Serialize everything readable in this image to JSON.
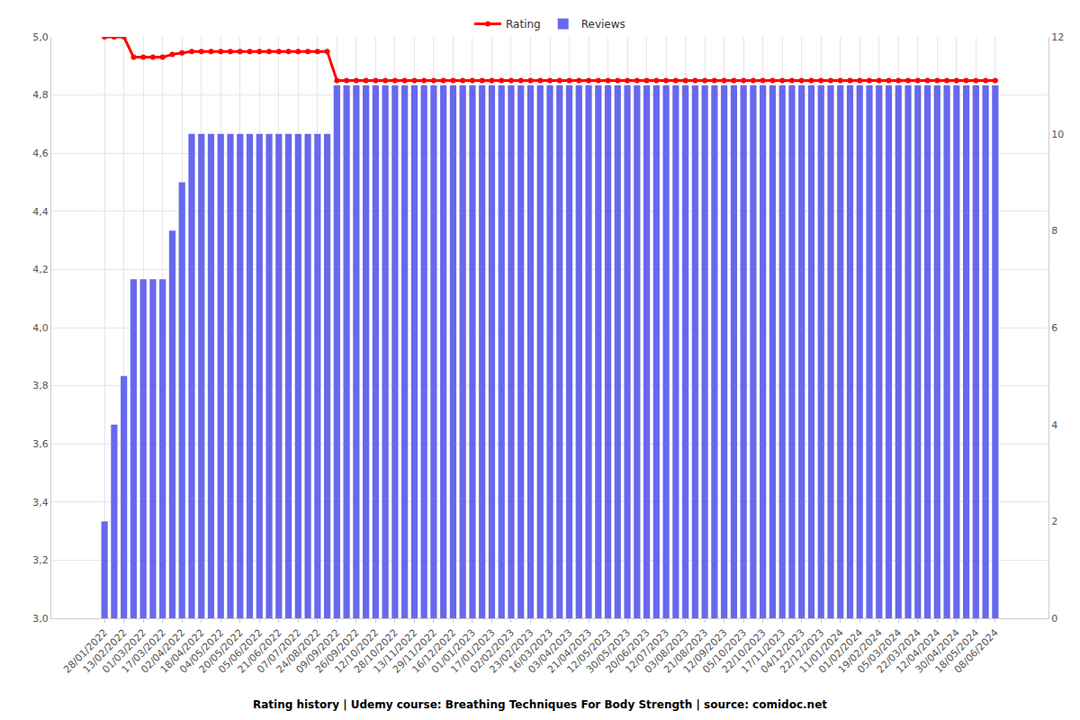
{
  "chart_data": {
    "type": "bar",
    "title": "Rating history | Udemy course: Breathing Techniques For Body Strength | source: comidoc.net",
    "categories": [
      "28/01/2022",
      null,
      "13/02/2022",
      null,
      "01/03/2022",
      null,
      "17/03/2022",
      null,
      "02/04/2022",
      null,
      "18/04/2022",
      null,
      "04/05/2022",
      null,
      "20/05/2022",
      null,
      "05/06/2022",
      null,
      "21/06/2022",
      null,
      "07/07/2022",
      null,
      "24/08/2022",
      null,
      "09/09/2022",
      null,
      "26/09/2022",
      null,
      "12/10/2022",
      null,
      "28/10/2022",
      null,
      "13/11/2022",
      null,
      "29/11/2022",
      null,
      "16/12/2022",
      null,
      "01/01/2023",
      null,
      "17/01/2023",
      null,
      "02/02/2023",
      null,
      "23/02/2023",
      null,
      "16/03/2023",
      null,
      "03/04/2023",
      null,
      "21/04/2023",
      null,
      "12/05/2023",
      null,
      "30/05/2023",
      null,
      "20/06/2023",
      null,
      "12/07/2023",
      null,
      "03/08/2023",
      null,
      "21/08/2023",
      null,
      "12/09/2023",
      null,
      "05/10/2023",
      null,
      "22/10/2023",
      null,
      "17/11/2023",
      null,
      "04/12/2023",
      null,
      "22/12/2023",
      null,
      "11/01/2024",
      null,
      "01/02/2024",
      null,
      "19/02/2024",
      null,
      "05/03/2024",
      null,
      "22/03/2024",
      null,
      "12/04/2024",
      null,
      "30/04/2024",
      null,
      "18/05/2024",
      null,
      "08/06/2024"
    ],
    "series": [
      {
        "name": "Rating",
        "type": "line",
        "color": "#ff0000",
        "marker": "circle",
        "values": [
          5,
          5,
          5,
          4.93,
          4.93,
          4.93,
          4.93,
          4.94,
          4.945,
          4.95,
          4.95,
          4.95,
          4.95,
          4.95,
          4.95,
          4.95,
          4.95,
          4.95,
          4.95,
          4.95,
          4.95,
          4.95,
          4.95,
          4.95,
          4.85,
          4.85,
          4.85,
          4.85,
          4.85,
          4.85,
          4.85,
          4.85,
          4.85,
          4.85,
          4.85,
          4.85,
          4.85,
          4.85,
          4.85,
          4.85,
          4.85,
          4.85,
          4.85,
          4.85,
          4.85,
          4.85,
          4.85,
          4.85,
          4.85,
          4.85,
          4.85,
          4.85,
          4.85,
          4.85,
          4.85,
          4.85,
          4.85,
          4.85,
          4.85,
          4.85,
          4.85,
          4.85,
          4.85,
          4.85,
          4.85,
          4.85,
          4.85,
          4.85,
          4.85,
          4.85,
          4.85,
          4.85,
          4.85,
          4.85,
          4.85,
          4.85,
          4.85,
          4.85,
          4.85,
          4.85,
          4.85,
          4.85,
          4.85,
          4.85,
          4.85,
          4.85,
          4.85,
          4.85,
          4.85,
          4.85,
          4.85,
          4.85,
          4.85
        ]
      },
      {
        "name": "Reviews",
        "type": "bar",
        "color": "#6868ee",
        "axis": "y2",
        "values": [
          2,
          4,
          5,
          7,
          7,
          7,
          7,
          8,
          9,
          10,
          10,
          10,
          10,
          10,
          10,
          10,
          10,
          10,
          10,
          10,
          10,
          10,
          10,
          10,
          11,
          11,
          11,
          11,
          11,
          11,
          11,
          11,
          11,
          11,
          11,
          11,
          11,
          11,
          11,
          11,
          11,
          11,
          11,
          11,
          11,
          11,
          11,
          11,
          11,
          11,
          11,
          11,
          11,
          11,
          11,
          11,
          11,
          11,
          11,
          11,
          11,
          11,
          11,
          11,
          11,
          11,
          11,
          11,
          11,
          11,
          11,
          11,
          11,
          11,
          11,
          11,
          11,
          11,
          11,
          11,
          11,
          11,
          11,
          11,
          11,
          11,
          11,
          11,
          11,
          11,
          11,
          11,
          11
        ]
      }
    ],
    "ylim": [
      3,
      5
    ],
    "yticks": [
      {
        "value": 3,
        "label": "3,0"
      },
      {
        "value": 3.2,
        "label": "3,2"
      },
      {
        "value": 3.4,
        "label": "3,4"
      },
      {
        "value": 3.6,
        "label": "3,6"
      },
      {
        "value": 3.8,
        "label": "3,8"
      },
      {
        "value": 4,
        "label": "4,0"
      },
      {
        "value": 4.2,
        "label": "4,2"
      },
      {
        "value": 4.4,
        "label": "4,4"
      },
      {
        "value": 4.6,
        "label": "4,6"
      },
      {
        "value": 4.8,
        "label": "4,8"
      },
      {
        "value": 5,
        "label": "5,0"
      }
    ],
    "y2lim": [
      0,
      12
    ],
    "y2ticks": [
      0,
      2,
      4,
      6,
      8,
      10,
      12
    ],
    "grid": true,
    "legend": "top"
  }
}
